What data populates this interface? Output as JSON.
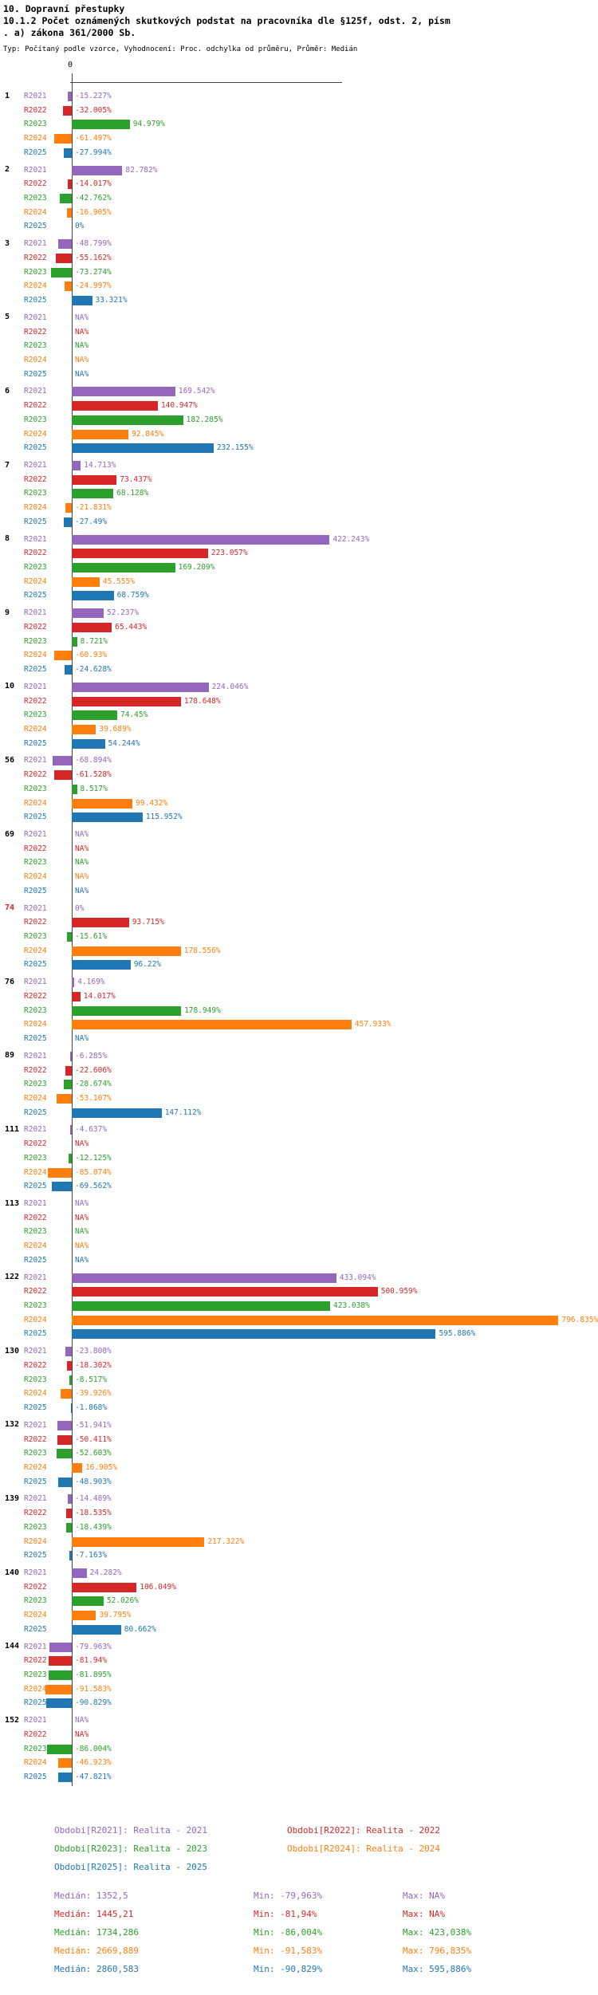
{
  "header": {
    "title_lines": [
      "10. Dopravní přestupky",
      "10.1.2 Počet oznámených skutkových podstat na pracovníka dle §125f, odst. 2, písm",
      ". a) zákona 361/2000 Sb."
    ],
    "subtitle": "Typ: Počítaný podle vzorce, Vyhodnocení: Proc. odchylka od průměru, Průměr: Medián"
  },
  "colors": {
    "R2021": "#9467bd",
    "R2022": "#d62728",
    "R2023": "#2ca02c",
    "R2024": "#ff7f0e",
    "R2025": "#1f77b4",
    "highlight": "#d62728"
  },
  "chart_data": {
    "type": "bar",
    "orientation": "horizontal",
    "unit": "%",
    "axis": {
      "zero_label": "0"
    },
    "series_order": [
      "R2021",
      "R2022",
      "R2023",
      "R2024",
      "R2025"
    ],
    "groups": [
      {
        "id": "1",
        "highlight": false,
        "values": {
          "R2021": "-15.227%",
          "R2022": "-32.005%",
          "R2023": "94.979%",
          "R2024": "-61.497%",
          "R2025": "-27.994%"
        }
      },
      {
        "id": "2",
        "highlight": false,
        "values": {
          "R2021": "82.782%",
          "R2022": "-14.017%",
          "R2023": "-42.762%",
          "R2024": "-16.905%",
          "R2025": "0%"
        }
      },
      {
        "id": "3",
        "highlight": false,
        "values": {
          "R2021": "-48.799%",
          "R2022": "-55.162%",
          "R2023": "-73.274%",
          "R2024": "-24.997%",
          "R2025": "33.321%"
        }
      },
      {
        "id": "5",
        "highlight": false,
        "values": {
          "R2021": "NA%",
          "R2022": "NA%",
          "R2023": "NA%",
          "R2024": "NA%",
          "R2025": "NA%"
        }
      },
      {
        "id": "6",
        "highlight": false,
        "values": {
          "R2021": "169.542%",
          "R2022": "140.947%",
          "R2023": "182.285%",
          "R2024": "92.845%",
          "R2025": "232.155%"
        }
      },
      {
        "id": "7",
        "highlight": false,
        "values": {
          "R2021": "14.713%",
          "R2022": "73.437%",
          "R2023": "68.128%",
          "R2024": "-21.831%",
          "R2025": "-27.49%"
        }
      },
      {
        "id": "8",
        "highlight": false,
        "values": {
          "R2021": "422.243%",
          "R2022": "223.057%",
          "R2023": "169.209%",
          "R2024": "45.555%",
          "R2025": "68.759%"
        }
      },
      {
        "id": "9",
        "highlight": false,
        "values": {
          "R2021": "52.237%",
          "R2022": "65.443%",
          "R2023": "8.721%",
          "R2024": "-60.93%",
          "R2025": "-24.628%"
        }
      },
      {
        "id": "10",
        "highlight": false,
        "values": {
          "R2021": "224.046%",
          "R2022": "178.648%",
          "R2023": "74.45%",
          "R2024": "39.689%",
          "R2025": "54.244%"
        }
      },
      {
        "id": "56",
        "highlight": false,
        "values": {
          "R2021": "-68.894%",
          "R2022": "-61.528%",
          "R2023": "8.517%",
          "R2024": "99.432%",
          "R2025": "115.952%"
        }
      },
      {
        "id": "69",
        "highlight": false,
        "values": {
          "R2021": "NA%",
          "R2022": "NA%",
          "R2023": "NA%",
          "R2024": "NA%",
          "R2025": "NA%"
        }
      },
      {
        "id": "74",
        "highlight": true,
        "values": {
          "R2021": "0%",
          "R2022": "93.715%",
          "R2023": "-15.61%",
          "R2024": "178.556%",
          "R2025": "96.22%"
        }
      },
      {
        "id": "76",
        "highlight": false,
        "values": {
          "R2021": "4.169%",
          "R2022": "14.017%",
          "R2023": "178.949%",
          "R2024": "457.933%",
          "R2025": "NA%"
        }
      },
      {
        "id": "89",
        "highlight": false,
        "values": {
          "R2021": "-6.285%",
          "R2022": "-22.606%",
          "R2023": "-28.674%",
          "R2024": "-53.107%",
          "R2025": "147.112%"
        }
      },
      {
        "id": "111",
        "highlight": false,
        "values": {
          "R2021": "-4.637%",
          "R2022": "NA%",
          "R2023": "-12.125%",
          "R2024": "-85.074%",
          "R2025": "-69.562%"
        }
      },
      {
        "id": "113",
        "highlight": false,
        "values": {
          "R2021": "NA%",
          "R2022": "NA%",
          "R2023": "NA%",
          "R2024": "NA%",
          "R2025": "NA%"
        }
      },
      {
        "id": "122",
        "highlight": false,
        "values": {
          "R2021": "433.094%",
          "R2022": "500.959%",
          "R2023": "423.038%",
          "R2024": "796.835%",
          "R2025": "595.886%"
        }
      },
      {
        "id": "130",
        "highlight": false,
        "values": {
          "R2021": "-23.808%",
          "R2022": "-18.302%",
          "R2023": "-8.517%",
          "R2024": "-39.926%",
          "R2025": "-1.868%"
        }
      },
      {
        "id": "132",
        "highlight": false,
        "values": {
          "R2021": "-51.941%",
          "R2022": "-50.411%",
          "R2023": "-52.603%",
          "R2024": "16.905%",
          "R2025": "-48.903%"
        }
      },
      {
        "id": "139",
        "highlight": false,
        "values": {
          "R2021": "-14.489%",
          "R2022": "-18.535%",
          "R2023": "-18.439%",
          "R2024": "217.322%",
          "R2025": "-7.163%"
        }
      },
      {
        "id": "140",
        "highlight": false,
        "values": {
          "R2021": "24.282%",
          "R2022": "106.049%",
          "R2023": "52.026%",
          "R2024": "39.795%",
          "R2025": "80.662%"
        }
      },
      {
        "id": "144",
        "highlight": false,
        "values": {
          "R2021": "-79.963%",
          "R2022": "-81.94%",
          "R2023": "-81.895%",
          "R2024": "-91.583%",
          "R2025": "-90.829%"
        }
      },
      {
        "id": "152",
        "highlight": false,
        "values": {
          "R2021": "NA%",
          "R2022": "NA%",
          "R2023": "-86.004%",
          "R2024": "-46.923%",
          "R2025": "-47.821%"
        }
      }
    ]
  },
  "legend": [
    {
      "year": "R2021",
      "label": "Obdobi[R2021]: Realita - 2021"
    },
    {
      "year": "R2022",
      "label": "Obdobi[R2022]: Realita - 2022"
    },
    {
      "year": "R2023",
      "label": "Obdobi[R2023]: Realita - 2023"
    },
    {
      "year": "R2024",
      "label": "Obdobi[R2024]: Realita - 2024"
    },
    {
      "year": "R2025",
      "label": "Obdobi[R2025]: Realita - 2025"
    }
  ],
  "stats": [
    {
      "year": "R2021",
      "median": "Medián: 1352,5",
      "min": "Min: -79,963%",
      "max": "Max: NA%"
    },
    {
      "year": "R2022",
      "median": "Medián: 1445,21",
      "min": "Min: -81,94%",
      "max": "Max: NA%"
    },
    {
      "year": "R2023",
      "median": "Medián: 1734,286",
      "min": "Min: -86,004%",
      "max": "Max: 423,038%"
    },
    {
      "year": "R2024",
      "median": "Medián: 2669,889",
      "min": "Min: -91,583%",
      "max": "Max: 796,835%"
    },
    {
      "year": "R2025",
      "median": "Medián: 2860,583",
      "min": "Min: -90,829%",
      "max": "Max: 595,886%"
    }
  ]
}
